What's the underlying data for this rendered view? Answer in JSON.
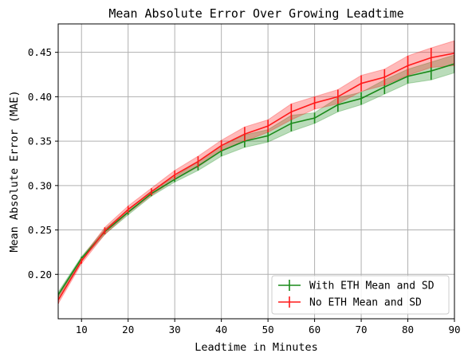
{
  "chart_data": {
    "type": "line",
    "title": "Mean Absolute Error Over Growing Leadtime",
    "xlabel": "Leadtime in Minutes",
    "ylabel": "Mean Absolute Error (MAE)",
    "xlim": [
      5,
      90
    ],
    "ylim": [
      0.15,
      0.482
    ],
    "xticks": [
      10,
      20,
      30,
      40,
      50,
      60,
      70,
      80,
      90
    ],
    "yticks": [
      0.2,
      0.25,
      0.3,
      0.35,
      0.4,
      0.45
    ],
    "grid": true,
    "legend_position": "bottom-right",
    "x": [
      5,
      10,
      15,
      20,
      25,
      30,
      35,
      40,
      45,
      50,
      55,
      60,
      65,
      70,
      75,
      80,
      85,
      90
    ],
    "series": [
      {
        "name": "With ETH Mean and SD",
        "color": "#1a8a1a",
        "mean": [
          0.177,
          0.218,
          0.248,
          0.27,
          0.291,
          0.307,
          0.322,
          0.339,
          0.35,
          0.356,
          0.37,
          0.376,
          0.391,
          0.398,
          0.411,
          0.423,
          0.429,
          0.437
        ],
        "sd": [
          0.003,
          0.002,
          0.003,
          0.003,
          0.003,
          0.003,
          0.005,
          0.006,
          0.007,
          0.007,
          0.009,
          0.006,
          0.008,
          0.007,
          0.008,
          0.008,
          0.01,
          0.01
        ]
      },
      {
        "name": "No ETH Mean and SD",
        "color": "#ff1a1a",
        "mean": [
          0.171,
          0.215,
          0.249,
          0.273,
          0.293,
          0.312,
          0.327,
          0.345,
          0.358,
          0.367,
          0.383,
          0.393,
          0.4,
          0.415,
          0.422,
          0.435,
          0.444,
          0.449
        ],
        "sd": [
          0.004,
          0.003,
          0.004,
          0.004,
          0.004,
          0.005,
          0.006,
          0.006,
          0.008,
          0.007,
          0.009,
          0.007,
          0.008,
          0.009,
          0.009,
          0.011,
          0.011,
          0.014
        ]
      }
    ]
  }
}
